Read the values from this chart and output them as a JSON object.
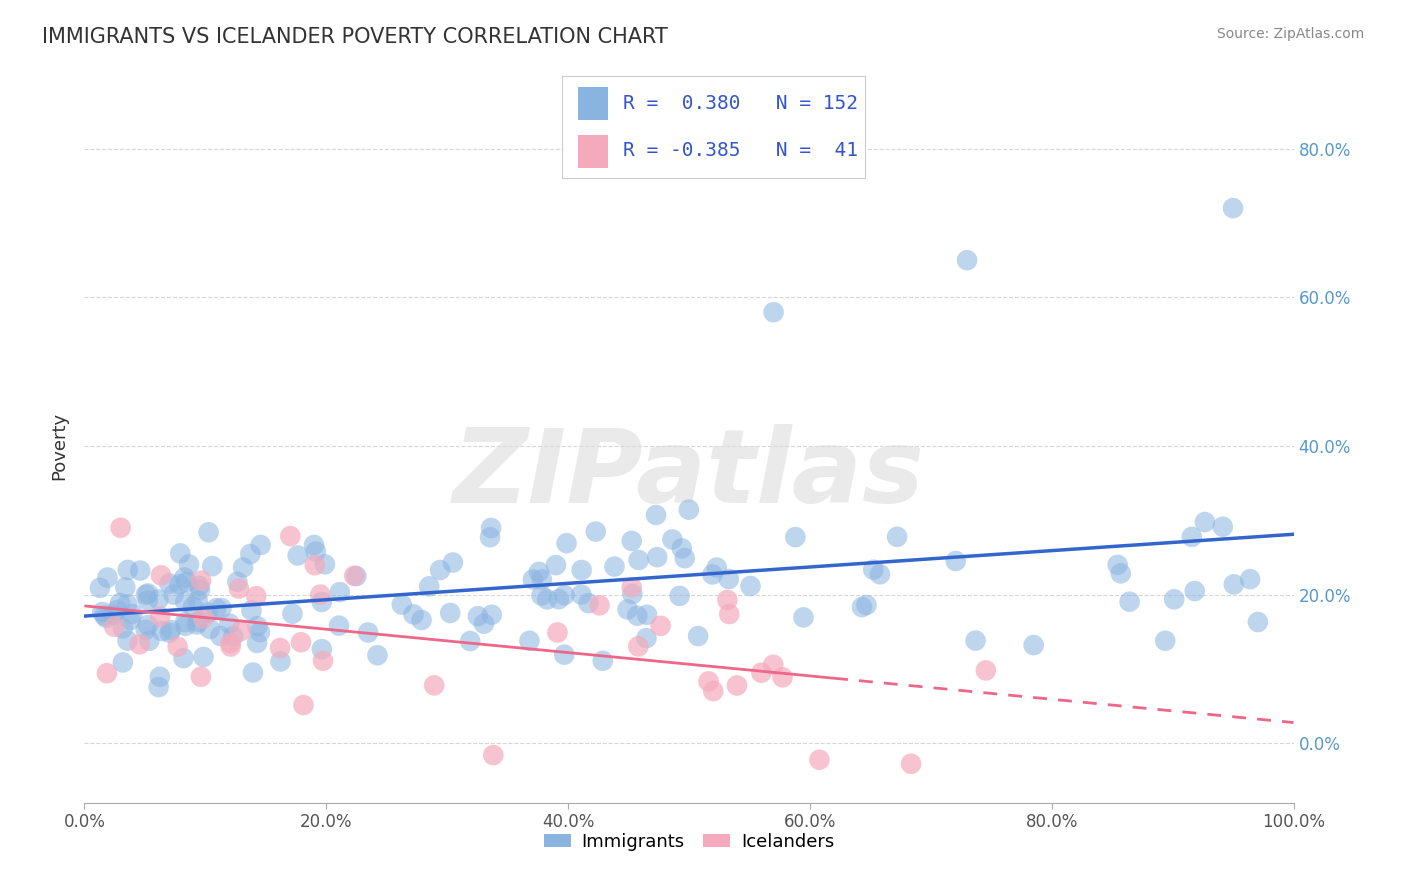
{
  "title": "IMMIGRANTS VS ICELANDER POVERTY CORRELATION CHART",
  "source_text": "Source: ZipAtlas.com",
  "ylabel": "Poverty",
  "xlabel": "",
  "xlim": [
    0.0,
    1.0
  ],
  "ylim": [
    -0.08,
    0.88
  ],
  "xticks": [
    0.0,
    0.2,
    0.4,
    0.6,
    0.8,
    1.0
  ],
  "xtick_labels": [
    "0.0%",
    "20.0%",
    "40.0%",
    "60.0%",
    "80.0%",
    "100.0%"
  ],
  "yticks": [
    0.0,
    0.2,
    0.4,
    0.6,
    0.8
  ],
  "ytick_labels": [
    "0.0%",
    "20.0%",
    "40.0%",
    "60.0%",
    "80.0%"
  ],
  "immigrants_R": 0.38,
  "immigrants_N": 152,
  "icelanders_R": -0.385,
  "icelanders_N": 41,
  "blue_color": "#8AB4E0",
  "pink_color": "#F4AABC",
  "trend_blue": "#3366CC",
  "trend_pink": "#EE6688",
  "watermark": "ZIPatlas",
  "background_color": "#FFFFFF",
  "grid_color": "#CCCCCC",
  "title_color": "#333333",
  "axis_label_color": "#333333",
  "legend_text_color": "#3355CC",
  "right_tick_color": "#5599CC"
}
